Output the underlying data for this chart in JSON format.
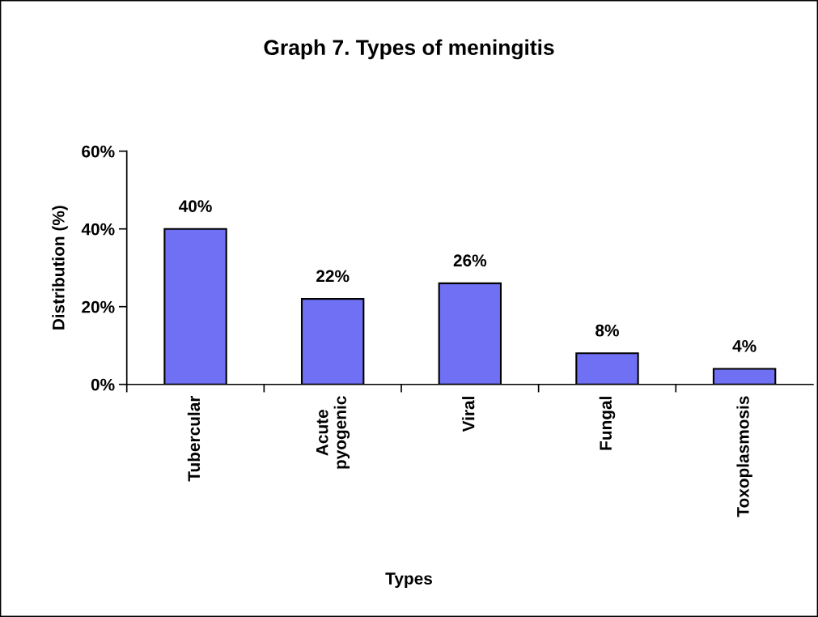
{
  "chart_data": {
    "type": "bar",
    "title": "Graph 7. Types of meningitis",
    "xlabel": "Types",
    "ylabel": "Distribution (%)",
    "categories": [
      "Tubercular",
      "Acute\npyogenic",
      "Viral",
      "Fungal",
      "Toxoplasmosis"
    ],
    "values": [
      40,
      22,
      26,
      8,
      4
    ],
    "value_labels": [
      "40%",
      "22%",
      "26%",
      "8%",
      "4%"
    ],
    "color": "#7070f4",
    "ylim": [
      0,
      60
    ],
    "yticks": [
      {
        "value": 0,
        "label": "0%"
      },
      {
        "value": 20,
        "label": "20%"
      },
      {
        "value": 40,
        "label": "40%"
      },
      {
        "value": 60,
        "label": "60%"
      }
    ],
    "grid": false
  }
}
